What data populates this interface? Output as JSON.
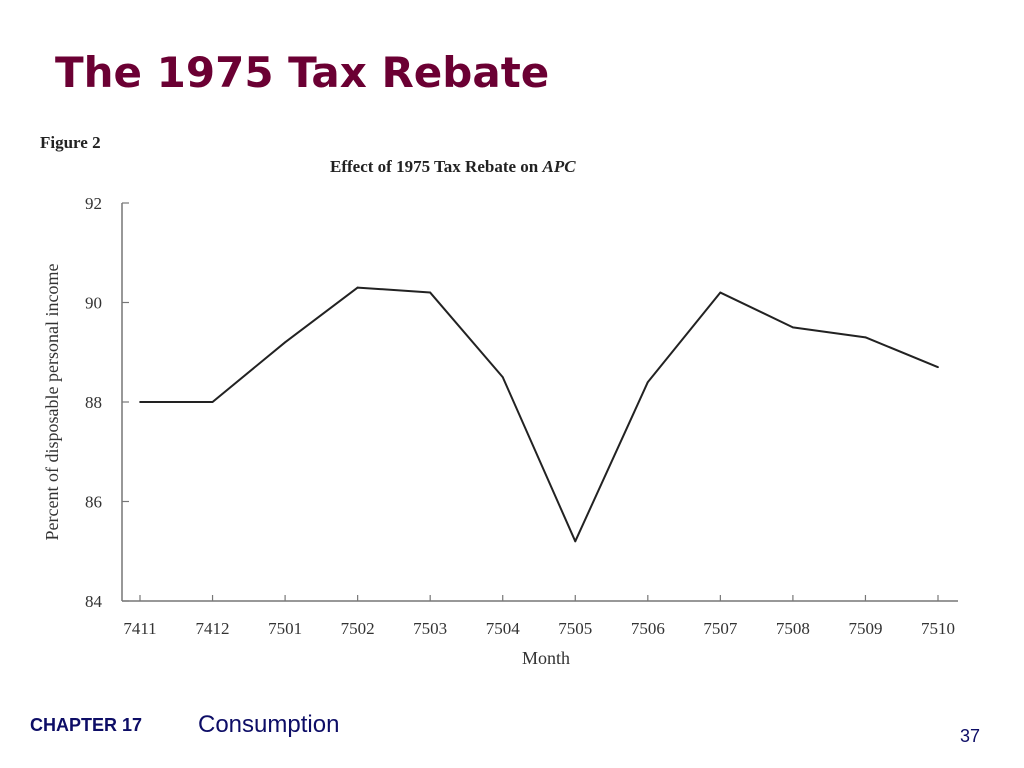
{
  "slide": {
    "title": "The 1975 Tax Rebate",
    "figure_label": "Figure 2",
    "footer_chapter": "CHAPTER 17",
    "footer_topic": "Consumption",
    "page_number": "37",
    "title_color": "#6b0033",
    "footer_color": "#0d0d66"
  },
  "chart_data": {
    "type": "line",
    "title_prefix": "Effect of 1975 Tax Rebate on ",
    "title_emphasis": "APC",
    "xlabel": "Month",
    "ylabel": "Percent of disposable personal income",
    "categories": [
      "7411",
      "7412",
      "7501",
      "7502",
      "7503",
      "7504",
      "7505",
      "7506",
      "7507",
      "7508",
      "7509",
      "7510"
    ],
    "series": [
      {
        "values": [
          88.0,
          88.0,
          89.2,
          90.3,
          90.2,
          88.5,
          85.2,
          88.4,
          90.2,
          89.5,
          89.3,
          88.7
        ]
      }
    ],
    "yticks": [
      "84",
      "86",
      "88",
      "90",
      "92"
    ],
    "ylim": [
      84,
      92
    ],
    "grid": false,
    "line_color": "#222222"
  }
}
